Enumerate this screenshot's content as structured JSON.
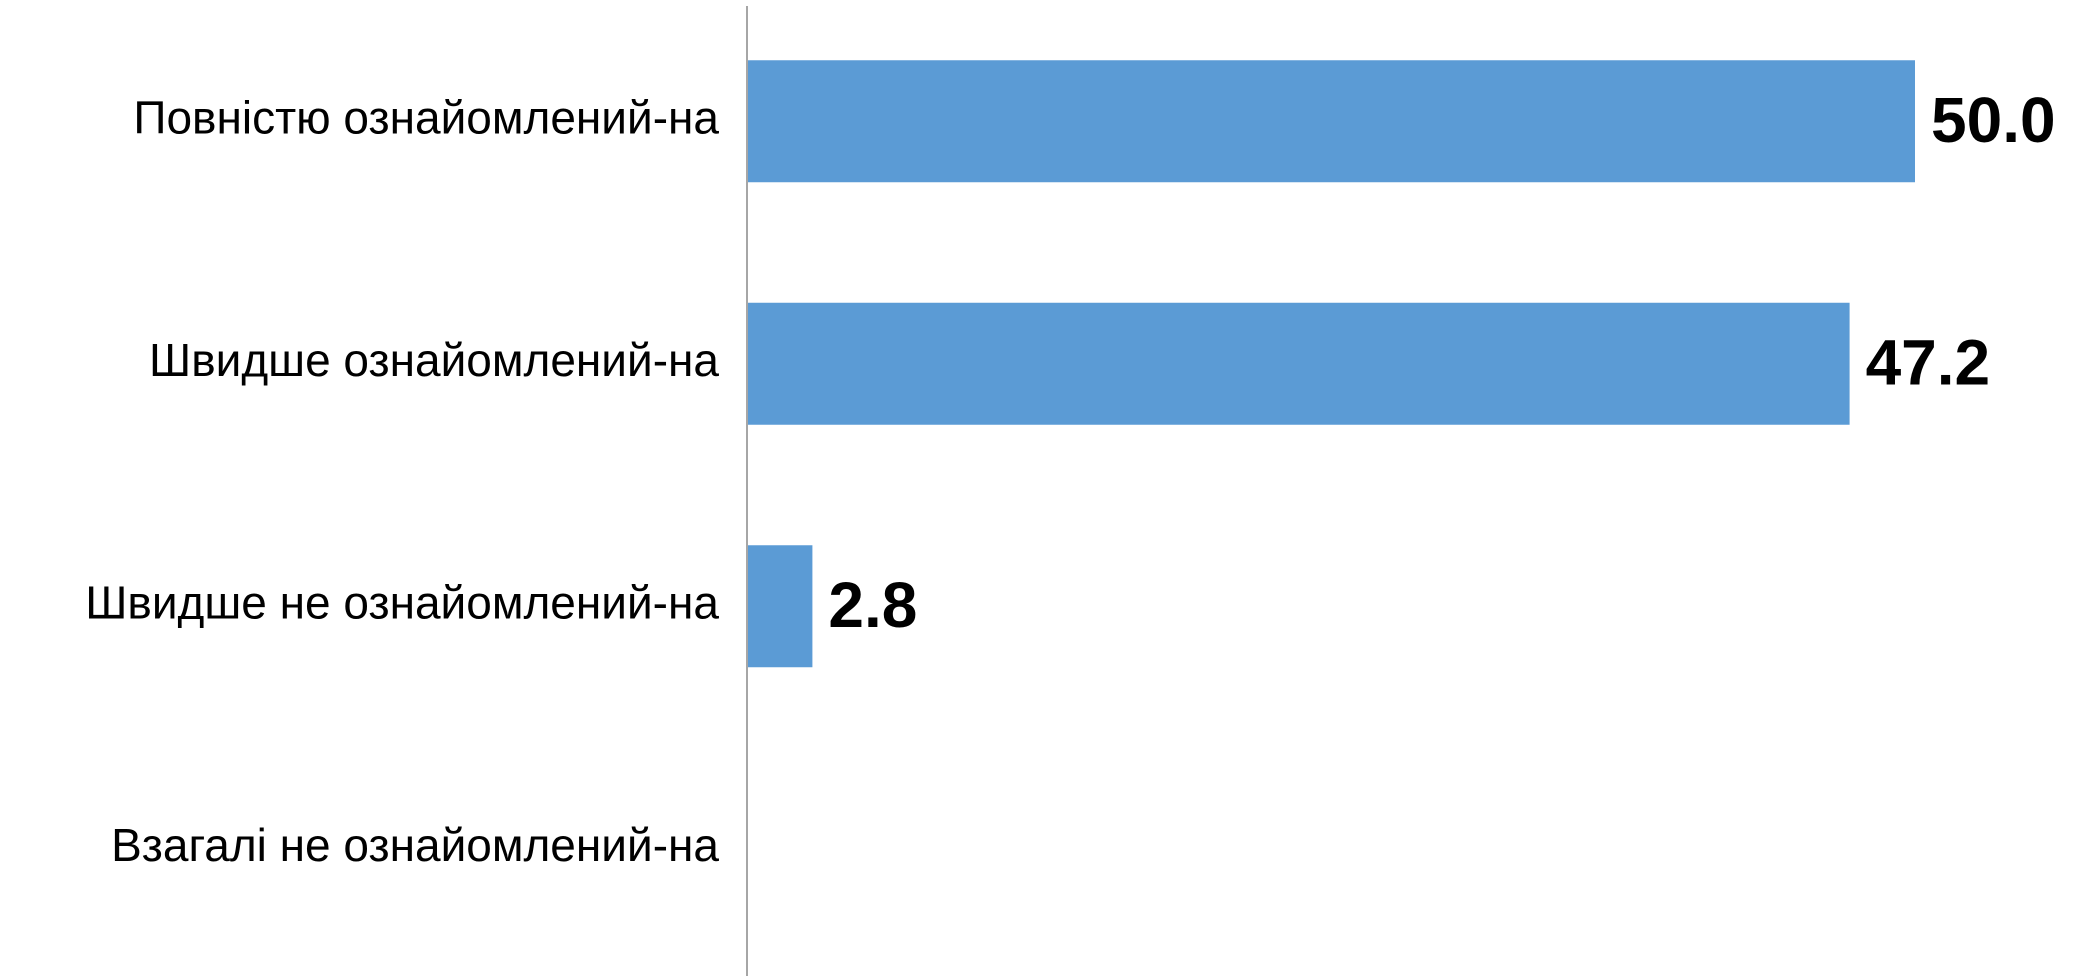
{
  "chart_data": {
    "type": "bar",
    "orientation": "horizontal",
    "categories": [
      "Повністю ознайомлений-на",
      "Швидше ознайомлений-на",
      "Швидше не ознайомлений-на",
      "Взагалі не ознайомлений-на"
    ],
    "values": [
      50.0,
      47.2,
      2.8,
      0
    ],
    "data_labels": [
      "50.0",
      "47.2",
      "2.8",
      ""
    ],
    "title": "",
    "xlabel": "",
    "ylabel": "",
    "xlim": [
      0,
      50
    ],
    "grid": false,
    "legend": "none",
    "bar_color": "#5B9BD5",
    "axis_color": "#A6A6A6"
  }
}
